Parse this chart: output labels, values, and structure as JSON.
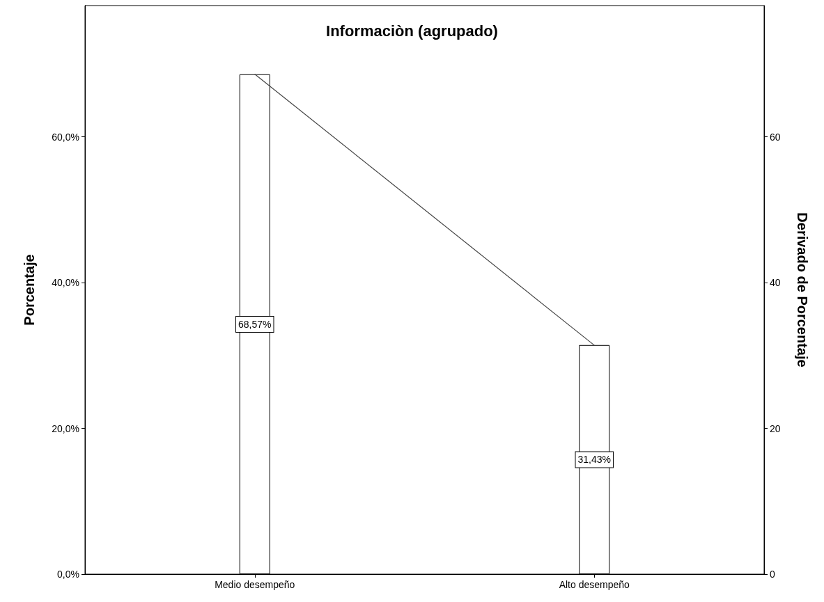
{
  "chart_data": {
    "type": "bar",
    "title": "Informaciòn (agrupado)",
    "ylabel": "Porcentaje",
    "y2label": "Derivado de Porcentaje",
    "categories": [
      "Medio desempeño",
      "Alto desempeño"
    ],
    "series": [
      {
        "color": "#ffffff",
        "values": [
          68.57,
          31.43
        ],
        "value_labels": [
          "68,57%",
          "31,43%"
        ]
      },
      {
        "type": "line",
        "color": "#444444",
        "values": [
          68.6,
          31.4
        ]
      }
    ],
    "ylim": [
      0,
      78
    ],
    "yticks": [
      {
        "value": 0,
        "label": "0,0%"
      },
      {
        "value": 20,
        "label": "20,0%"
      },
      {
        "value": 40,
        "label": "40,0%"
      },
      {
        "value": 60,
        "label": "60,0%"
      }
    ],
    "y2lim": [
      0,
      78
    ],
    "y2ticks": [
      0,
      20,
      40,
      60
    ],
    "grid": false,
    "marker": "none",
    "line_style": "solid"
  }
}
